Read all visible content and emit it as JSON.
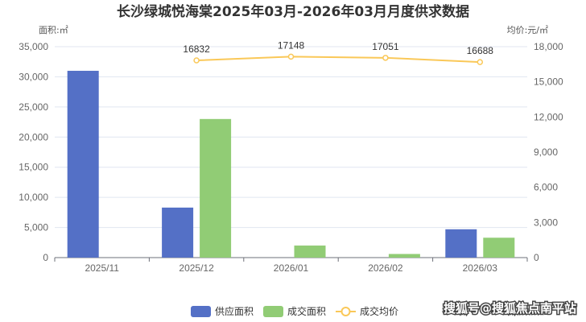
{
  "chart_data": {
    "type": "bar",
    "title": "长沙绿城悦海棠2025年03月-2026年03月月度供求数据",
    "y_left_unit": "面积:㎡",
    "y_right_unit": "均价:元/㎡",
    "categories": [
      "2025/11",
      "2025/12",
      "2026/01",
      "2026/02",
      "2026/03"
    ],
    "ylim_left": [
      0,
      35000
    ],
    "yticks_left": [
      "0",
      "5,000",
      "10,000",
      "15,000",
      "20,000",
      "25,000",
      "30,000",
      "35,000"
    ],
    "ylim_right": [
      0,
      18000
    ],
    "yticks_right": [
      "0",
      "3,000",
      "6,000",
      "9,000",
      "12,000",
      "15,000",
      "18,000"
    ],
    "grid": true,
    "legend_position": "bottom",
    "series": [
      {
        "name": "供应面积",
        "type": "bar",
        "axis": "left",
        "color": "#5470c6",
        "values": [
          31000,
          8300,
          null,
          null,
          4700
        ]
      },
      {
        "name": "成交面积",
        "type": "bar",
        "axis": "left",
        "color": "#91cc75",
        "values": [
          null,
          23000,
          2000,
          600,
          3300
        ]
      },
      {
        "name": "成交均价",
        "type": "line",
        "axis": "right",
        "color": "#fac858",
        "values": [
          null,
          16832,
          17148,
          17051,
          16688
        ],
        "labels": [
          "",
          "16832",
          "17148",
          "17051",
          "16688"
        ]
      }
    ]
  },
  "watermark": "搜狐号@搜狐焦点南平站"
}
